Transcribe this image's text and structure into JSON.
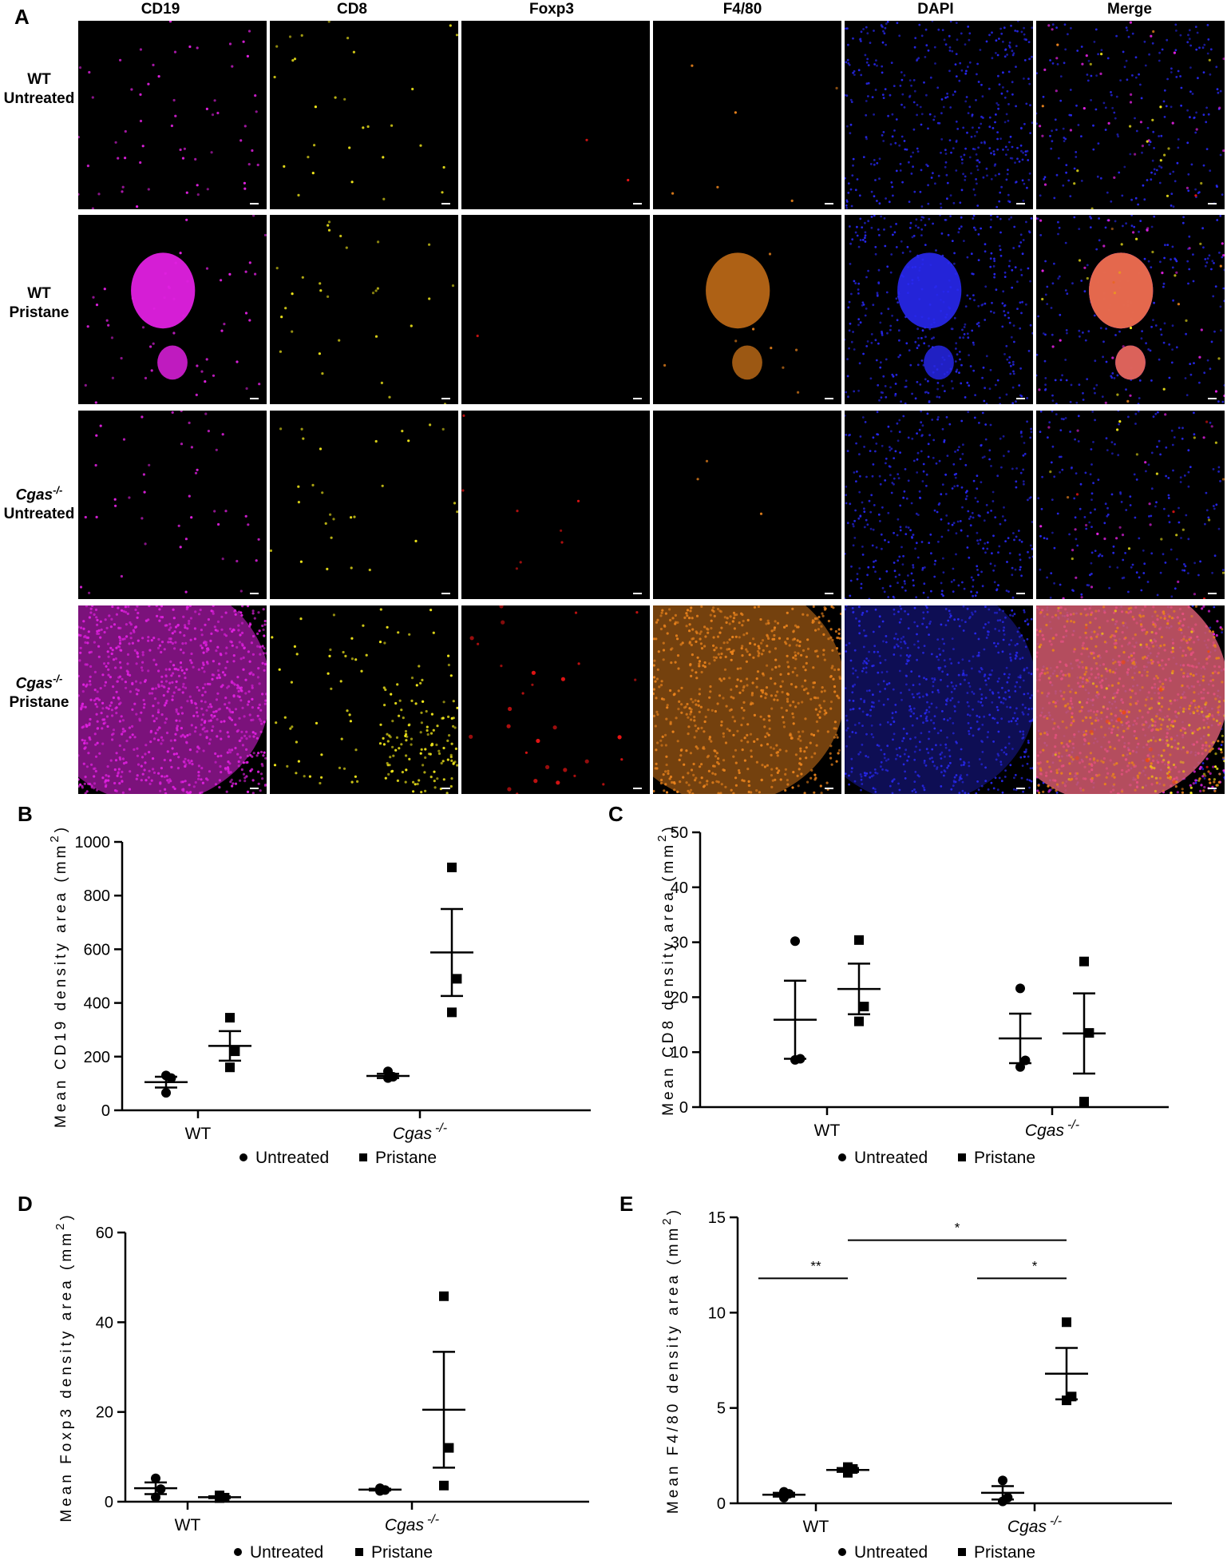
{
  "figure": {
    "panel_a_label": "A",
    "columns": [
      "CD19",
      "CD8",
      "Foxp3",
      "F4/80",
      "DAPI",
      "Merge"
    ],
    "rows": [
      {
        "line1": "WT",
        "line1_italic": false,
        "sup": "",
        "line2": "Untreated"
      },
      {
        "line1": "WT",
        "line1_italic": false,
        "sup": "",
        "line2": "Pristane"
      },
      {
        "line1": "Cgas",
        "line1_italic": true,
        "sup": "-/-",
        "line2": "Untreated"
      },
      {
        "line1": "Cgas",
        "line1_italic": true,
        "sup": "-/-",
        "line2": "Pristane"
      }
    ],
    "channel_colors": {
      "CD19": "#e020e0",
      "CD8": "#f2e81a",
      "Foxp3": "#e81414",
      "F4/80": "#e8821c",
      "DAPI": "#2828f0"
    }
  },
  "chart_data": [
    {
      "panel": "B",
      "type": "scatter",
      "ylabel": "Mean CD19 density area (mm2)",
      "ylim": [
        0,
        1000
      ],
      "yticks": [
        0,
        200,
        400,
        600,
        800,
        1000
      ],
      "categories": [
        {
          "text": "WT",
          "italic": false,
          "sup": ""
        },
        {
          "text": "Cgas",
          "italic": true,
          "sup": "-/-"
        }
      ],
      "legend": [
        "Untreated",
        "Pristane"
      ],
      "series": [
        {
          "name": "Untreated",
          "marker": "circle",
          "points": [
            [
              0,
              130
            ],
            [
              0,
              120
            ],
            [
              0,
              65
            ],
            [
              1,
              145
            ],
            [
              1,
              125
            ],
            [
              1,
              120
            ]
          ],
          "means": [
            105,
            128
          ],
          "sem": [
            20,
            8
          ]
        },
        {
          "name": "Pristane",
          "marker": "square",
          "points": [
            [
              0,
              345
            ],
            [
              0,
              220
            ],
            [
              0,
              160
            ],
            [
              1,
              905
            ],
            [
              1,
              490
            ],
            [
              1,
              365
            ]
          ],
          "means": [
            240,
            588
          ],
          "sem": [
            55,
            162
          ]
        }
      ],
      "significance": []
    },
    {
      "panel": "C",
      "type": "scatter",
      "ylabel": "Mean CD8 density area (mm2)",
      "ylim": [
        0,
        50
      ],
      "yticks": [
        0,
        10,
        20,
        30,
        40,
        50
      ],
      "categories": [
        {
          "text": "WT",
          "italic": false,
          "sup": ""
        },
        {
          "text": "Cgas",
          "italic": true,
          "sup": "-/-"
        }
      ],
      "legend": [
        "Untreated",
        "Pristane"
      ],
      "series": [
        {
          "name": "Untreated",
          "marker": "circle",
          "points": [
            [
              0,
              30.2
            ],
            [
              0,
              8.8
            ],
            [
              0,
              8.6
            ],
            [
              1,
              21.6
            ],
            [
              1,
              8.5
            ],
            [
              1,
              7.3
            ]
          ],
          "means": [
            15.9,
            12.5
          ],
          "sem": [
            7.1,
            4.5
          ]
        },
        {
          "name": "Pristane",
          "marker": "square",
          "points": [
            [
              0,
              30.4
            ],
            [
              0,
              18.3
            ],
            [
              0,
              15.6
            ],
            [
              1,
              26.5
            ],
            [
              1,
              13.5
            ],
            [
              1,
              1.0
            ]
          ],
          "means": [
            21.5,
            13.4
          ],
          "sem": [
            4.6,
            7.3
          ]
        }
      ],
      "significance": []
    },
    {
      "panel": "D",
      "type": "scatter",
      "ylabel": "Mean Foxp3 density area (mm2)",
      "ylim": [
        0,
        60
      ],
      "yticks": [
        0,
        20,
        40,
        60
      ],
      "categories": [
        {
          "text": "WT",
          "italic": false,
          "sup": ""
        },
        {
          "text": "Cgas",
          "italic": true,
          "sup": "-/-"
        }
      ],
      "legend": [
        "Untreated",
        "Pristane"
      ],
      "series": [
        {
          "name": "Untreated",
          "marker": "circle",
          "points": [
            [
              0,
              5.2
            ],
            [
              0,
              2.8
            ],
            [
              0,
              1.0
            ],
            [
              1,
              3.0
            ],
            [
              1,
              2.6
            ],
            [
              1,
              2.4
            ]
          ],
          "means": [
            3.0,
            2.7
          ],
          "sem": [
            1.3,
            0.2
          ]
        },
        {
          "name": "Pristane",
          "marker": "square",
          "points": [
            [
              0,
              1.4
            ],
            [
              0,
              0.9
            ],
            [
              0,
              0.8
            ],
            [
              1,
              45.8
            ],
            [
              1,
              12.0
            ],
            [
              1,
              3.6
            ]
          ],
          "means": [
            1.0,
            20.5
          ],
          "sem": [
            0.2,
            12.9
          ]
        }
      ],
      "significance": []
    },
    {
      "panel": "E",
      "type": "scatter",
      "ylabel": "Mean F4/80 density area (mm2)",
      "ylim": [
        0,
        15
      ],
      "yticks": [
        0,
        5,
        10,
        15
      ],
      "categories": [
        {
          "text": "WT",
          "italic": false,
          "sup": ""
        },
        {
          "text": "Cgas",
          "italic": true,
          "sup": "-/-"
        }
      ],
      "legend": [
        "Untreated",
        "Pristane"
      ],
      "series": [
        {
          "name": "Untreated",
          "marker": "circle",
          "points": [
            [
              0,
              0.6
            ],
            [
              0,
              0.5
            ],
            [
              0,
              0.3
            ],
            [
              1,
              1.2
            ],
            [
              1,
              0.3
            ],
            [
              1,
              0.1
            ]
          ],
          "means": [
            0.45,
            0.55
          ],
          "sem": [
            0.1,
            0.35
          ]
        },
        {
          "name": "Pristane",
          "marker": "square",
          "points": [
            [
              0,
              1.9
            ],
            [
              0,
              1.8
            ],
            [
              0,
              1.6
            ],
            [
              1,
              9.5
            ],
            [
              1,
              5.6
            ],
            [
              1,
              5.4
            ]
          ],
          "means": [
            1.75,
            6.8
          ],
          "sem": [
            0.1,
            1.35
          ]
        }
      ],
      "significance": [
        {
          "from": [
            0,
            "Untreated"
          ],
          "to": [
            0,
            "Pristane"
          ],
          "y": 11.8,
          "label": "**"
        },
        {
          "from": [
            0,
            "Pristane"
          ],
          "to": [
            1,
            "Pristane"
          ],
          "y": 13.8,
          "label": "*"
        },
        {
          "from": [
            1,
            "Untreated"
          ],
          "to": [
            1,
            "Pristane"
          ],
          "y": 11.8,
          "label": "*"
        }
      ]
    }
  ]
}
